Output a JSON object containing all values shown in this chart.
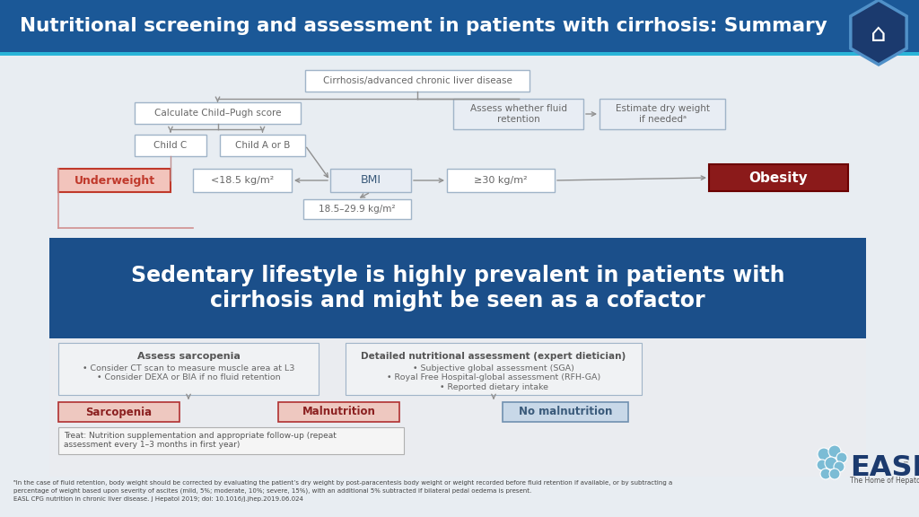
{
  "title": "Nutritional screening and assessment in patients with cirrhosis: Summary",
  "title_bg": "#1b5897",
  "title_fg": "#ffffff",
  "slide_bg": "#ffffff",
  "content_bg": "#e8edf2",
  "highlight_bg": "#1b4f8a",
  "highlight_text": "Sedentary lifestyle is highly prevalent in patients with\ncirrhosis and might be seen as a cofactor",
  "highlight_fg": "#ffffff",
  "box_border": "#a0b4c8",
  "box_fill": "#ffffff",
  "box_fill2": "#e8edf4",
  "box_text": "#666666",
  "underweight_fill": "#f2c4bc",
  "underweight_border": "#c0392b",
  "underweight_text": "#c0392b",
  "underweight_label": "Underweight",
  "obesity_fill": "#8b1a1a",
  "obesity_border": "#6b0000",
  "obesity_text": "#ffffff",
  "obesity_label": "Obesity",
  "sarcopenia_fill": "#eec8c0",
  "sarcopenia_border": "#b03030",
  "sarcopenia_text": "#8b2020",
  "sarcopenia_label": "Sarcopenia",
  "malnutrition_fill": "#eec8c0",
  "malnutrition_border": "#b03030",
  "malnutrition_text": "#8b2020",
  "malnutrition_label": "Malnutrition",
  "no_malnutrition_fill": "#c8d8e8",
  "no_malnutrition_border": "#7090b0",
  "no_malnutrition_text": "#3a5a7a",
  "no_malnutrition_label": "No malnutrition",
  "arrow_color": "#909090",
  "line_color": "#c0a0a0",
  "footer_text1": "ᵃIn the case of fluid retention, body weight should be corrected by evaluating the patient’s dry weight by post-paracentesis body weight or weight recorded before fluid retention if available, or by subtracting a",
  "footer_text2": "percentage of weight based upon severity of ascites (mild, 5%; moderate, 10%; severe, 15%), with an additional 5% subtracted if bilateral pedal oedema is present.",
  "footer_text3": "EASL CPG nutrition in chronic liver disease. J Hepatol 2019; doi: 10.1016/j.jhep.2019.06.024"
}
